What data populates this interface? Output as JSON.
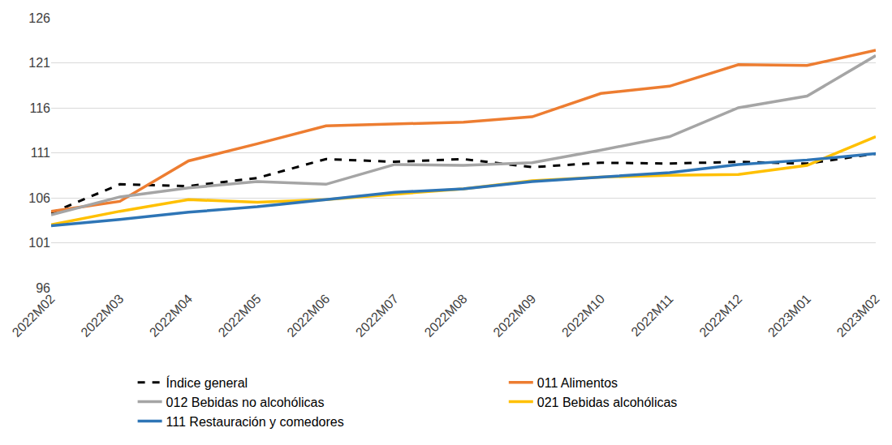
{
  "chart_data": {
    "type": "line",
    "categories": [
      "2022M02",
      "2022M03",
      "2022M04",
      "2022M05",
      "2022M06",
      "2022M07",
      "2022M08",
      "2022M09",
      "2022M10",
      "2022M11",
      "2022M12",
      "2023M01",
      "2023M02"
    ],
    "series": [
      {
        "name": "Índice general",
        "color": "#000000",
        "line_style": "dashed",
        "values": [
          104.3,
          107.5,
          107.3,
          108.2,
          110.3,
          110.0,
          110.3,
          109.4,
          109.9,
          109.8,
          110.0,
          109.8,
          110.9
        ]
      },
      {
        "name": "011 Alimentos",
        "color": "#ed7d31",
        "line_style": "solid",
        "values": [
          104.5,
          105.6,
          110.1,
          112.0,
          114.0,
          114.2,
          114.4,
          115.0,
          117.6,
          118.4,
          120.8,
          120.7,
          122.4
        ]
      },
      {
        "name": "012 Bebidas no alcohólicas",
        "color": "#a5a5a5",
        "line_style": "solid",
        "values": [
          104.1,
          106.1,
          107.1,
          107.8,
          107.5,
          109.7,
          109.6,
          109.9,
          111.3,
          112.8,
          116.0,
          117.3,
          121.8
        ]
      },
      {
        "name": "021 Bebidas alcohólicas",
        "color": "#ffc000",
        "line_style": "solid",
        "values": [
          103.0,
          104.5,
          105.8,
          105.5,
          105.8,
          106.4,
          107.0,
          107.9,
          108.3,
          108.5,
          108.6,
          109.6,
          112.8
        ]
      },
      {
        "name": "111 Restauración y comedores",
        "color": "#2e75b6",
        "line_style": "solid",
        "values": [
          102.9,
          103.6,
          104.4,
          105.0,
          105.8,
          106.6,
          107.0,
          107.8,
          108.3,
          108.8,
          109.7,
          110.2,
          110.9
        ]
      }
    ],
    "ylim": [
      96,
      126
    ],
    "yticks": [
      96,
      101,
      106,
      111,
      116,
      121,
      126
    ],
    "grid": true,
    "legend": "bottom"
  }
}
